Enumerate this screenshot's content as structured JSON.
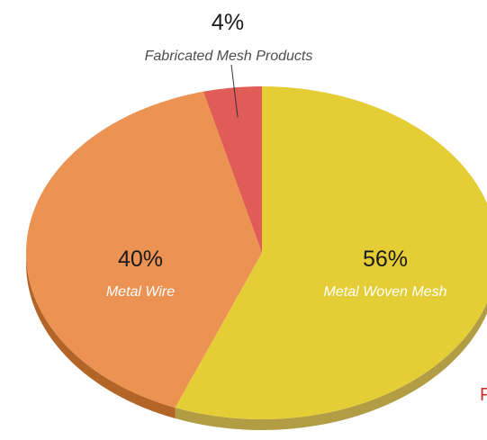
{
  "chart_data": {
    "type": "pie",
    "categories": [
      "Fabricated Mesh Products",
      "Metal Woven Mesh",
      "Metal Wire"
    ],
    "values": [
      4,
      56,
      40
    ],
    "value_labels": [
      "4%",
      "56%",
      "40%"
    ],
    "colors": {
      "Fabricated Mesh Products": "#df5c57",
      "Metal Woven Mesh": "#e5cd36",
      "Metal Wire": "#ec9353"
    },
    "side_colors": {
      "Fabricated Mesh Products": "#a8403c",
      "Metal Woven Mesh": "#b29d44",
      "Metal Wire": "#b36528"
    },
    "style": "3d-tilted"
  },
  "edge_text": "F"
}
